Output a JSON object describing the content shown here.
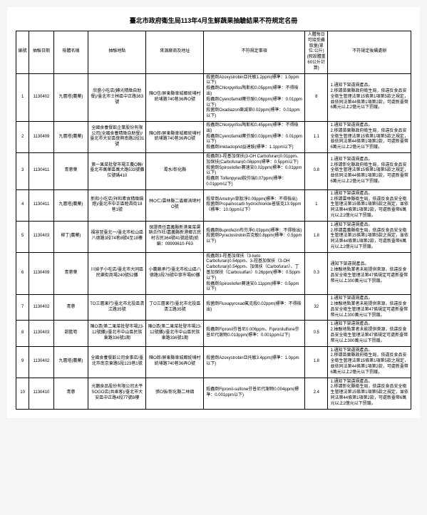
{
  "doc_title": "臺北市政府衛生局113年4月生鮮蔬果抽驗結果不符規定名冊",
  "headers": {
    "no": "編號",
    "date": "抽驗日期",
    "name": "檢體名稱",
    "loc": "抽驗地點",
    "src": "來源廠商及地址",
    "res": "不符規定事項",
    "adi": "人體每日可接受攝取量(單位:公斤)(假設體重60公斤計算)",
    "viol": "不符規定後續處辦"
  },
  "rows": [
    {
      "no": "1",
      "date": "1130402",
      "name": "九層塔(農藥)",
      "loc": "欣盛小吃店(轉光精緻自助餐)/臺北市士林區中正路363號",
      "src": "陳O信/屏東縣車城鄉統埔村統埔路740巷36弄O號",
      "res": "殺菌劑Azoxystrobin亞托敏1.2ppm(標準：1.0ppm以下)\n殺蟲劑Chlorpyrifos陶斯松0.05ppm(標準：不得檢出)\n殺蟲劑Cyenofamid賽芬胺0.06ppm(標準：0.01ppm以下)\n殺菌劑Oxadiazon樂滅草0.02ppm(標準：0.01ppm以下)",
      "adi": "8",
      "viol": "1.通知下架違規產品。\n2.移請苗栗縣政府衛生局，依違反食品安全衛生管理法第15條第1項第5款之規定，並依同法第44條第1項第2款，可處新臺幣6萬元以上2億元以下罰鍰。"
    },
    {
      "no": "2",
      "date": "1130409",
      "name": "九層塔(農藥)",
      "loc": "全國食養餐飲企業股份有限公司(全國食養精緻自助餐)/臺北市大安區復興南路2段31號",
      "src": "陳O郎/屏東縣車城鄉統埔村統埔路740巷36弄O號",
      "res": "殺蟲劑Chlorpyrifos陶斯松0.45ppm(標準：不得檢出)\n殺蟲劑Cyenofamid賽芬胺0.03ppm(標準：0.01ppm以下)\n殺蟲劑Imidacloprid益達胺(標準：1.1ppm以下)",
      "adi": "1.1",
      "viol": "1.通知下架違規產品。\n2.移請苗栗縣政府衛生局，依違反食品安全衛生管理法第15條第1項第5款之規定，並依同法第44條第1項第2款，可處新臺幣6萬元以上2億元以下罰鍰。"
    },
    {
      "no": "3",
      "date": "1130411",
      "name": "青蔥葉",
      "loc": "第一果菜批發市場王農O聯/臺北市萬華區萬大路533號攤位號碼410",
      "src": "濁水/彰化縣",
      "res": "殺蟲劑3-羥基加保扶(3-OH Carbofuran)0.01ppm、加保扶(Carbofuran)0.08ppm(標準：0.5ppm以下)\n殺菌劑Spiroxilofen賽速安0.02ppm(標準：0.01ppm以下)\n殺蟲劑 Tolfenpyrad脫芬瑞0.07ppm(標準：0.01ppm以下)",
      "adi": "0.8",
      "viol": "1.通知下架違規產品。\n2.移請彰化縣政府衛生局，依違反食品安全衛生管理法第15條第1項第5款之規定，並依同法第44條第1項第2款，可處新臺幣6萬元以上2億元以下罰鍰。"
    },
    {
      "no": "4",
      "date": "1130411",
      "name": "九層塔(農藥)",
      "loc": "新和小吃店(祥和素食精緻鍋燴)/臺北市中正區睦昌街18巷1號",
      "src": "林O仁/雲林縣二崙鄉湳埤村O號",
      "res": "殺草劑Ametryn草脫淨0.09ppm(標準：不得檢出)\n殺菌劑Propamocarb hydrochloride普拔克13.9ppm（標準：10.0ppm以下）",
      "adi": "1",
      "viol": "1.通知下架違規產品。\n2.移請雲林縣衛生局，依違反食品安全衛生管理法第15條第1項第5款之規定，並依同法第44條第1項第2款，可處新臺幣6萬元以上2億元以下罰鍰。"
    },
    {
      "no": "5",
      "date": "1130403",
      "name": "柳丁(農藥)",
      "loc": "福容翌臺北一/臺北市松山區八德路3段74巷8號4至18樓",
      "src": "保證貴任嘉義縣新港果菜運銷合作社/嘉義縣新港鄉古民村古民364號41號遞號(統編：09999610-F63",
      "res": "殺蟲劑Buprofezin布芬淨0.03ppm(標準：不得檢出)\n殺菌劑Pyraclostrobin百克敏0.8ppm(標準：0.5ppm以下)",
      "adi": "1.8",
      "viol": "1.通知下架違規產品。\n2.移請嘉義縣衛生局，依違反食品安全衛生管理法第15條第1項第5款之規定，並依同法第44條第1項第2款，可處新臺幣6萬元以上2億元以下罰鍰。"
    },
    {
      "no": "6",
      "date": "1130409",
      "name": "青蔥葉",
      "loc": "川妹子小吃店/臺北市大同區民樂街商場240號52攤",
      "src": "小農廠承行/臺北市松山區八德路3段76號中寧市場60攤",
      "res": "殺蟲劑3-羥基加保扶（3-keto Carbofuran)0.54ppm、3-羥基加保扶（3-OH Carbofuran)0.54ppm、加保扶（Carbofuran）、丁基加保扶（Carbosulfan）0.26ppm(標準：0.5ppm以下)\n殺蟲劑Spiroxilofen賽速安0.11ppm(標準：0.5ppm以下)",
      "adi": "0.3",
      "viol": "通知下架違規產品。\n2.抽驗地點業者未能提供來源，依違反食品安全衛生管理法第47條規定可處新臺幣幣元以上300萬元以下罰鍰。"
    },
    {
      "no": "7",
      "date": "1130402",
      "name": "青蔥",
      "loc": "TO三層果行/臺北市北投區清江路35號",
      "src": "丁O三層果行/臺北市北投區清江路35號",
      "res": "殺菌劑Fluxapyroxad氟克殺0.02ppm(標準：不得檢出)",
      "adi": "32",
      "viol": "1.通知下架違規產品。\n2.抽驗地點業者未能提供來源，依違反食品安全衛生管理法第47條規定可處新臺幣幣元以上300萬元以下罰鍰。"
    },
    {
      "no": "8",
      "date": "1130403",
      "name": "甜藍筍",
      "loc": "陳O清(第二果菜批發市場23-12號攤)/臺北市中山區民族東路336號1期",
      "src": "陳O清(第二果菜批發市場23-12號攤)/臺北市中山區民族東路336號1期",
      "res": "殺蟲劑Fipronil芬普尼0.006ppm、Fipronilulfone芬普尼代謝物0.013ppm(標準：0.001ppm以下)",
      "adi": "0.5",
      "viol": "1.通知下架違規產品。\n2.抽驗地點業者未能提供來源，依違反食品安全衛生管理法第47條規定可處新臺幣幣元以上300萬元以下罰鍰。"
    },
    {
      "no": "9",
      "date": "1130402",
      "name": "九層塔(農藥)",
      "loc": "全國食養餐飲公司食事店/臺北市南京東路5段123巷1號",
      "src": "陳O郎/屏東縣車城鄉統埔村統埔路740巷36弄O號",
      "res": "殺菌劑Azoxystrobin亞托敏3.4ppm(標準：1.0ppm以下)",
      "adi": "1.8",
      "viol": "1.通知下架違規產品。\n2.移請苗栗縣政府衛生局，依違反食品安全衛生管理法第15條第1項第5款之規定，並依同法第44條第1項第2款，可處新臺幣6萬元以上2億元以下罰鍰。"
    },
    {
      "no": "10",
      "date": "1130410",
      "name": "青蔥",
      "loc": "光鵝食品股份有限公司太平SOGO店(共乘客)/臺北市大安區中正路4段77號B樓",
      "src": "張O強/彰化縣二林鎮",
      "res": "殺蟲劑Fipronil-sulfone芬普尼代謝物0.004ppm(標準：0.001ppm以下)",
      "adi": "2.4",
      "viol": "1.通知下架違規產品。\n2.移請彰化縣衛生局，依違反食品安全衛生管理法第15條第1項第5款之規定，並依同法第44條第1項第2款，可處新臺幣6萬元以上2億元以下罰鍰。"
    }
  ]
}
